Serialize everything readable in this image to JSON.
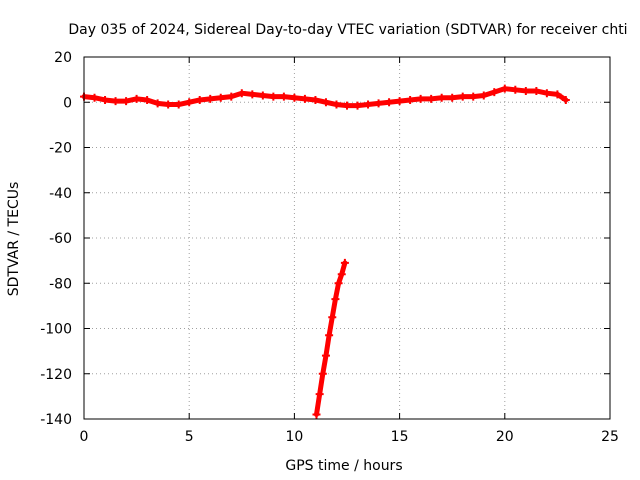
{
  "chart_data": {
    "type": "scatter",
    "title": "Day 035 of 2024, Sidereal Day-to-day VTEC variation (SDTVAR) for receiver chti",
    "xlabel": "GPS time / hours",
    "ylabel": "SDTVAR / TECUs",
    "xlim": [
      0,
      25
    ],
    "ylim": [
      -140,
      20
    ],
    "x_ticks": [
      "0",
      "5",
      "10",
      "15",
      "20",
      "25"
    ],
    "y_ticks": [
      "20",
      "0",
      "-20",
      "-40",
      "-60",
      "-80",
      "-100",
      "-120",
      "-140"
    ],
    "grid": true,
    "marker": "plus",
    "series": [
      {
        "color": "#ff0000",
        "x": [
          0.0,
          0.5,
          1.0,
          1.5,
          2.0,
          2.5,
          3.0,
          3.5,
          4.0,
          4.5,
          5.0,
          5.5,
          6.0,
          6.5,
          7.0,
          7.5,
          8.0,
          8.5,
          9.0,
          9.5,
          10.0,
          10.5,
          11.0,
          11.5,
          12.0,
          12.5,
          13.0,
          13.5,
          14.0,
          14.5,
          15.0,
          15.5,
          16.0,
          16.5,
          17.0,
          17.5,
          18.0,
          18.5,
          19.0,
          19.5,
          20.0,
          20.5,
          21.0,
          21.5,
          22.0,
          22.5,
          22.9
        ],
        "y": [
          2.5,
          2.0,
          1.0,
          0.5,
          0.5,
          1.5,
          1.0,
          -0.5,
          -1.0,
          -1.0,
          0.0,
          1.0,
          1.5,
          2.0,
          2.5,
          4.0,
          3.5,
          3.0,
          2.5,
          2.5,
          2.0,
          1.5,
          1.0,
          0.0,
          -1.0,
          -1.5,
          -1.5,
          -1.0,
          -0.5,
          0.0,
          0.5,
          1.0,
          1.5,
          1.5,
          2.0,
          2.0,
          2.5,
          2.5,
          3.0,
          4.5,
          6.0,
          5.5,
          5.0,
          5.0,
          4.0,
          3.5,
          1.0
        ]
      },
      {
        "color": "#ff0000",
        "x": [
          11.05,
          11.2,
          11.35,
          11.5,
          11.65,
          11.8,
          11.95,
          12.1,
          12.25,
          12.4
        ],
        "y": [
          -138,
          -129,
          -120,
          -112,
          -103,
          -95,
          -87,
          -80,
          -76,
          -71
        ]
      }
    ]
  }
}
